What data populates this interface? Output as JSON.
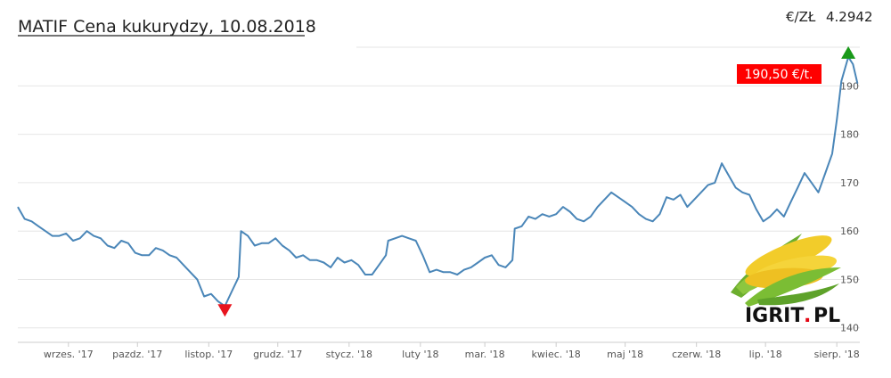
{
  "header": {
    "title": "MATIF Cena kukurydzy, 10.08.2018",
    "fx_label": "€/ZŁ",
    "fx_value": "4.2942"
  },
  "price_badge": "190,50 €/t.",
  "logo": {
    "main": "IGRIT",
    "dot": ".",
    "suffix": "PL"
  },
  "colors": {
    "line": "#4a86b8",
    "grid": "#e6e6e6",
    "badge": "#ff0000",
    "up_marker": "#1a9a1a",
    "down_marker": "#e8141e"
  },
  "chart_data": {
    "type": "line",
    "title": "MATIF Cena kukurydzy, 10.08.2018",
    "xlabel": "",
    "ylabel": "",
    "ylim": [
      137,
      198
    ],
    "yticks": [
      140,
      150,
      160,
      170,
      180,
      190
    ],
    "ytick_labels": [
      "140",
      "150",
      "160",
      "170",
      "180",
      "190"
    ],
    "xlim": [
      "2017-08-10",
      "2018-08-11"
    ],
    "xticks": [
      {
        "date": "2017-09-01",
        "label": "wrzes. '17"
      },
      {
        "date": "2017-10-01",
        "label": "pazdz. '17"
      },
      {
        "date": "2017-11-01",
        "label": "listop. '17"
      },
      {
        "date": "2017-12-01",
        "label": "grudz. '17"
      },
      {
        "date": "2018-01-01",
        "label": "stycz. '18"
      },
      {
        "date": "2018-02-01",
        "label": "luty '18"
      },
      {
        "date": "2018-03-01",
        "label": "mar. '18"
      },
      {
        "date": "2018-04-01",
        "label": "kwiec. '18"
      },
      {
        "date": "2018-05-01",
        "label": "maj '18"
      },
      {
        "date": "2018-06-01",
        "label": "czerw. '18"
      },
      {
        "date": "2018-07-01",
        "label": "lip. '18"
      },
      {
        "date": "2018-08-01",
        "label": "sierp. '18"
      }
    ],
    "grid": true,
    "series": [
      {
        "name": "",
        "points": [
          [
            "2017-08-10",
            165.0
          ],
          [
            "2017-08-13",
            162.5
          ],
          [
            "2017-08-16",
            162.0
          ],
          [
            "2017-08-19",
            161.0
          ],
          [
            "2017-08-22",
            160.0
          ],
          [
            "2017-08-25",
            159.0
          ],
          [
            "2017-08-28",
            159.0
          ],
          [
            "2017-08-31",
            159.5
          ],
          [
            "2017-09-03",
            158.0
          ],
          [
            "2017-09-06",
            158.5
          ],
          [
            "2017-09-09",
            160.0
          ],
          [
            "2017-09-12",
            159.0
          ],
          [
            "2017-09-15",
            158.5
          ],
          [
            "2017-09-18",
            157.0
          ],
          [
            "2017-09-21",
            156.5
          ],
          [
            "2017-09-24",
            158.0
          ],
          [
            "2017-09-27",
            157.5
          ],
          [
            "2017-09-30",
            155.5
          ],
          [
            "2017-10-03",
            155.0
          ],
          [
            "2017-10-06",
            155.0
          ],
          [
            "2017-10-09",
            156.5
          ],
          [
            "2017-10-12",
            156.0
          ],
          [
            "2017-10-15",
            155.0
          ],
          [
            "2017-10-18",
            154.5
          ],
          [
            "2017-10-21",
            153.0
          ],
          [
            "2017-10-24",
            151.5
          ],
          [
            "2017-10-27",
            150.0
          ],
          [
            "2017-10-30",
            146.5
          ],
          [
            "2017-11-02",
            147.0
          ],
          [
            "2017-11-05",
            145.5
          ],
          [
            "2017-11-08",
            144.5
          ],
          [
            "2017-11-11",
            147.5
          ],
          [
            "2017-11-14",
            150.5
          ],
          [
            "2017-11-15",
            160.0
          ],
          [
            "2017-11-18",
            159.0
          ],
          [
            "2017-11-21",
            157.0
          ],
          [
            "2017-11-24",
            157.5
          ],
          [
            "2017-11-27",
            157.5
          ],
          [
            "2017-11-30",
            158.5
          ],
          [
            "2017-12-03",
            157.0
          ],
          [
            "2017-12-06",
            156.0
          ],
          [
            "2017-12-09",
            154.5
          ],
          [
            "2017-12-12",
            155.0
          ],
          [
            "2017-12-15",
            154.0
          ],
          [
            "2017-12-18",
            154.0
          ],
          [
            "2017-12-21",
            153.5
          ],
          [
            "2017-12-24",
            152.5
          ],
          [
            "2017-12-27",
            154.5
          ],
          [
            "2017-12-30",
            153.5
          ],
          [
            "2018-01-02",
            154.0
          ],
          [
            "2018-01-05",
            153.0
          ],
          [
            "2018-01-08",
            151.0
          ],
          [
            "2018-01-11",
            151.0
          ],
          [
            "2018-01-14",
            153.0
          ],
          [
            "2018-01-17",
            155.0
          ],
          [
            "2018-01-18",
            158.0
          ],
          [
            "2018-01-21",
            158.5
          ],
          [
            "2018-01-24",
            159.0
          ],
          [
            "2018-01-27",
            158.5
          ],
          [
            "2018-01-30",
            158.0
          ],
          [
            "2018-02-02",
            155.0
          ],
          [
            "2018-02-05",
            151.5
          ],
          [
            "2018-02-08",
            152.0
          ],
          [
            "2018-02-11",
            151.5
          ],
          [
            "2018-02-14",
            151.5
          ],
          [
            "2018-02-17",
            151.0
          ],
          [
            "2018-02-20",
            152.0
          ],
          [
            "2018-02-23",
            152.5
          ],
          [
            "2018-02-26",
            153.5
          ],
          [
            "2018-03-01",
            154.5
          ],
          [
            "2018-03-04",
            155.0
          ],
          [
            "2018-03-07",
            153.0
          ],
          [
            "2018-03-10",
            152.5
          ],
          [
            "2018-03-13",
            154.0
          ],
          [
            "2018-03-14",
            160.5
          ],
          [
            "2018-03-17",
            161.0
          ],
          [
            "2018-03-20",
            163.0
          ],
          [
            "2018-03-23",
            162.5
          ],
          [
            "2018-03-26",
            163.5
          ],
          [
            "2018-03-29",
            163.0
          ],
          [
            "2018-04-01",
            163.5
          ],
          [
            "2018-04-04",
            165.0
          ],
          [
            "2018-04-07",
            164.0
          ],
          [
            "2018-04-10",
            162.5
          ],
          [
            "2018-04-13",
            162.0
          ],
          [
            "2018-04-16",
            163.0
          ],
          [
            "2018-04-19",
            165.0
          ],
          [
            "2018-04-22",
            166.5
          ],
          [
            "2018-04-25",
            168.0
          ],
          [
            "2018-04-28",
            167.0
          ],
          [
            "2018-05-01",
            166.0
          ],
          [
            "2018-05-04",
            165.0
          ],
          [
            "2018-05-07",
            163.5
          ],
          [
            "2018-05-10",
            162.5
          ],
          [
            "2018-05-13",
            162.0
          ],
          [
            "2018-05-16",
            163.5
          ],
          [
            "2018-05-19",
            167.0
          ],
          [
            "2018-05-22",
            166.5
          ],
          [
            "2018-05-25",
            167.5
          ],
          [
            "2018-05-28",
            165.0
          ],
          [
            "2018-05-31",
            166.5
          ],
          [
            "2018-06-03",
            168.0
          ],
          [
            "2018-06-06",
            169.5
          ],
          [
            "2018-06-09",
            170.0
          ],
          [
            "2018-06-12",
            174.0
          ],
          [
            "2018-06-15",
            171.5
          ],
          [
            "2018-06-18",
            169.0
          ],
          [
            "2018-06-21",
            168.0
          ],
          [
            "2018-06-24",
            167.5
          ],
          [
            "2018-06-27",
            164.5
          ],
          [
            "2018-06-30",
            162.0
          ],
          [
            "2018-07-03",
            163.0
          ],
          [
            "2018-07-06",
            164.5
          ],
          [
            "2018-07-09",
            163.0
          ],
          [
            "2018-07-12",
            166.0
          ],
          [
            "2018-07-15",
            169.0
          ],
          [
            "2018-07-18",
            172.0
          ],
          [
            "2018-07-21",
            170.0
          ],
          [
            "2018-07-24",
            168.0
          ],
          [
            "2018-07-27",
            172.0
          ],
          [
            "2018-07-30",
            176.0
          ],
          [
            "2018-08-01",
            183.0
          ],
          [
            "2018-08-03",
            191.0
          ],
          [
            "2018-08-06",
            196.0
          ],
          [
            "2018-08-08",
            194.5
          ],
          [
            "2018-08-10",
            190.5
          ]
        ]
      }
    ],
    "annotations": [
      {
        "kind": "max-marker",
        "date": "2018-08-06",
        "value": 196.0
      },
      {
        "kind": "min-marker",
        "date": "2017-11-08",
        "value": 144.5
      }
    ]
  }
}
